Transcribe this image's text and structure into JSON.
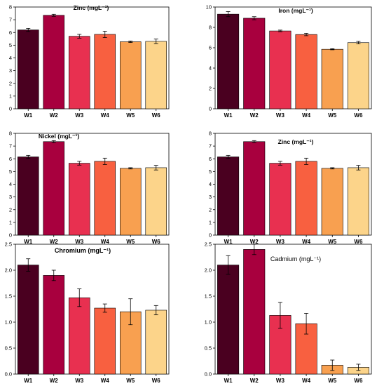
{
  "figure": {
    "colors": [
      "#4a0020",
      "#a8003e",
      "#e83050",
      "#f86040",
      "#f8a050",
      "#fcd48a"
    ]
  },
  "chart_data": [
    {
      "type": "bar",
      "title": "Zinc (mgL⁻¹)",
      "categories": [
        "W1",
        "W2",
        "W3",
        "W4",
        "W5",
        "W6"
      ],
      "values": [
        6.2,
        7.35,
        5.7,
        5.85,
        5.27,
        5.3
      ],
      "errors": [
        0.12,
        0.08,
        0.15,
        0.25,
        0.06,
        0.18
      ],
      "ylim": [
        0,
        8
      ],
      "yticks": [
        "0",
        "1",
        "2",
        "3",
        "4",
        "5",
        "6",
        "7",
        "8"
      ]
    },
    {
      "type": "bar",
      "title": "Iron (mgL⁻¹)",
      "categories": [
        "W1",
        "W2",
        "W3",
        "W4",
        "W5",
        "W6"
      ],
      "values": [
        9.3,
        8.9,
        7.65,
        7.3,
        5.85,
        6.5
      ],
      "errors": [
        0.25,
        0.15,
        0.08,
        0.12,
        0.05,
        0.12
      ],
      "ylim": [
        0,
        10
      ],
      "yticks": [
        "0",
        "2",
        "4",
        "6",
        "8",
        "10"
      ]
    },
    {
      "type": "bar",
      "title": "Nickel (mgL⁻¹)",
      "categories": [
        "W1",
        "W2",
        "W3",
        "W4",
        "W5",
        "W6"
      ],
      "values": [
        6.15,
        7.35,
        5.65,
        5.8,
        5.25,
        5.3
      ],
      "errors": [
        0.12,
        0.08,
        0.15,
        0.25,
        0.05,
        0.18
      ],
      "ylim": [
        0,
        8
      ],
      "yticks": [
        "0",
        "1",
        "2",
        "3",
        "4",
        "5",
        "6",
        "7",
        "8"
      ]
    },
    {
      "type": "bar",
      "title": "Zinc (mgL⁻¹)",
      "categories": [
        "W1",
        "W2",
        "W3",
        "W4",
        "W5",
        "W6"
      ],
      "values": [
        6.15,
        7.35,
        5.65,
        5.8,
        5.25,
        5.3
      ],
      "errors": [
        0.12,
        0.08,
        0.15,
        0.25,
        0.05,
        0.18
      ],
      "ylim": [
        0,
        8
      ],
      "yticks": [
        "0",
        "1",
        "2",
        "3",
        "4",
        "5",
        "6",
        "7",
        "8"
      ]
    },
    {
      "type": "bar",
      "title": "Chromium (mgL⁻¹)",
      "categories": [
        "W1",
        "W2",
        "W3",
        "W4",
        "W5",
        "W6"
      ],
      "values": [
        2.1,
        1.9,
        1.47,
        1.27,
        1.2,
        1.23
      ],
      "errors": [
        0.12,
        0.1,
        0.17,
        0.08,
        0.25,
        0.09
      ],
      "ylim": [
        0,
        2.5
      ],
      "yticks": [
        "0.0",
        "0.5",
        "1.0",
        "1.5",
        "2.0",
        "2.5"
      ]
    },
    {
      "type": "bar",
      "title": "Cadmium (mgL⁻¹)",
      "categories": [
        "W1",
        "W2",
        "W3",
        "W4",
        "W5",
        "W6"
      ],
      "values": [
        2.1,
        2.4,
        1.13,
        0.97,
        0.17,
        0.13
      ],
      "errors": [
        0.18,
        0.1,
        0.25,
        0.2,
        0.1,
        0.06
      ],
      "ylim": [
        0,
        2.5
      ],
      "yticks": [
        "0.0",
        "0.5",
        "1.0",
        "1.5",
        "2.0",
        "2.5"
      ]
    }
  ]
}
